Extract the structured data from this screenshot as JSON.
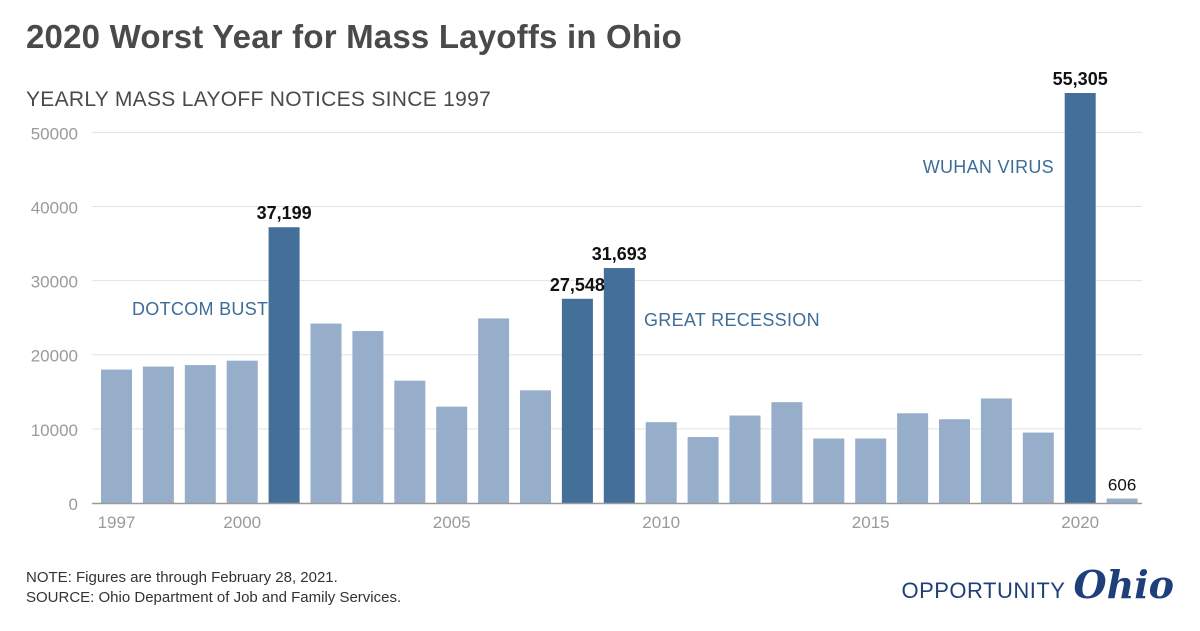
{
  "title": "2020 Worst Year for Mass Layoffs in Ohio",
  "footer": {
    "note": "NOTE: Figures are through February 28, 2021.",
    "source": "SOURCE: Ohio Department of Job and Family Services.",
    "logo_word": "OPPORTUNITY",
    "logo_script": "Ohio"
  },
  "chart_data": {
    "type": "bar",
    "title": "YEARLY MASS LAYOFF NOTICES SINCE 1997",
    "xlabel": "",
    "ylabel": "",
    "ylim": [
      0,
      55305
    ],
    "grid": true,
    "x_ticks": [
      "1997",
      "2000",
      "2005",
      "2010",
      "2015",
      "2020"
    ],
    "y_ticks": [
      "0",
      "10000",
      "20000",
      "30000",
      "40000",
      "50000"
    ],
    "categories": [
      "1997",
      "1998",
      "1999",
      "2000",
      "2001",
      "2002",
      "2003",
      "2004",
      "2005",
      "2006",
      "2007",
      "2008",
      "2009",
      "2010",
      "2011",
      "2012",
      "2013",
      "2014",
      "2015",
      "2016",
      "2017",
      "2018",
      "2019",
      "2020",
      "2021"
    ],
    "values": [
      18000,
      18400,
      18600,
      19200,
      37199,
      24200,
      23200,
      16500,
      13000,
      24900,
      15200,
      27548,
      31693,
      10900,
      8900,
      11800,
      13600,
      8700,
      8700,
      12100,
      11300,
      14100,
      9500,
      55305,
      606
    ],
    "highlight": [
      false,
      false,
      false,
      false,
      true,
      false,
      false,
      false,
      false,
      false,
      false,
      true,
      true,
      false,
      false,
      false,
      false,
      false,
      false,
      false,
      false,
      false,
      false,
      true,
      false
    ],
    "data_labels": [
      {
        "year": "2001",
        "text": "37,199",
        "bold": true
      },
      {
        "year": "2008",
        "text": "27,548",
        "bold": true
      },
      {
        "year": "2009",
        "text": "31,693",
        "bold": true
      },
      {
        "year": "2020",
        "text": "55,305",
        "bold": true
      },
      {
        "year": "2021",
        "text": "606",
        "bold": false
      }
    ],
    "annotations": [
      {
        "text": "DOTCOM BUST",
        "near_year": "1999"
      },
      {
        "text": "GREAT RECESSION",
        "near_year": "2011"
      },
      {
        "text": "WUHAN VIRUS",
        "near_year": "2019"
      }
    ],
    "colors": {
      "bar": "#97aecb",
      "highlight": "#436f98",
      "grid": "#e2e2e2",
      "axis": "#9a9a9a",
      "tick_text": "#9a9a9a",
      "annotation": "#3e6d99",
      "label": "#111111"
    }
  }
}
